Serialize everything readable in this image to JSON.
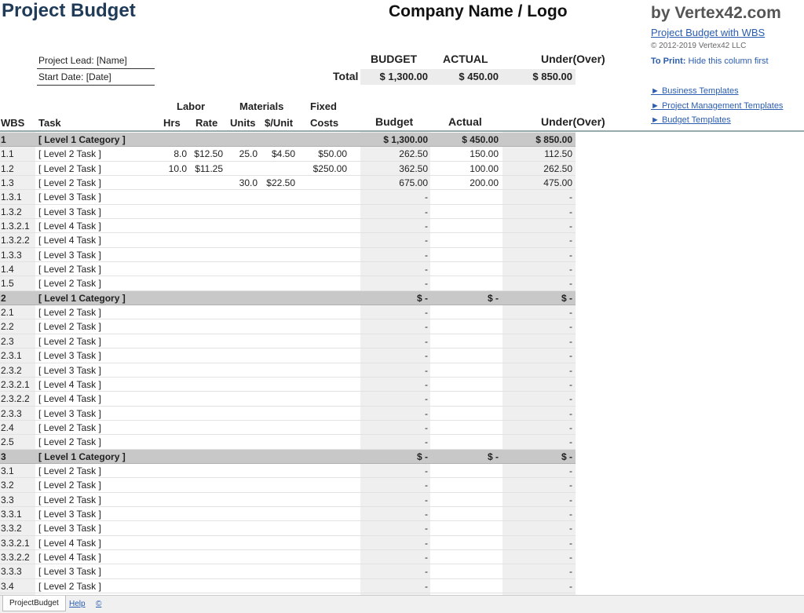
{
  "header": {
    "title": "Project Budget",
    "company": "Company Name / Logo",
    "brand": "by Vertex42.com",
    "brand_link": "Project Budget with WBS",
    "copyright": "© 2012-2019 Vertex42 LLC",
    "to_print_label": "To Print:",
    "to_print_text": "Hide this column first"
  },
  "info": {
    "lead": "Project Lead: [Name]",
    "start": "Start Date: [Date]"
  },
  "summary": {
    "budget_label": "BUDGET",
    "actual_label": "ACTUAL",
    "under_label": "Under(Over)",
    "total_label": "Total",
    "budget": "$ 1,300.00",
    "actual": "$ 450.00",
    "under": "$ 850.00"
  },
  "side_links": [
    "► Business Templates",
    "► Project Management Templates",
    "► Budget Templates"
  ],
  "columns": {
    "labor": "Labor",
    "materials": "Materials",
    "fixed": "Fixed",
    "wbs": "WBS",
    "task": "Task",
    "hrs": "Hrs",
    "rate": "Rate",
    "units": "Units",
    "per_unit": "$/Unit",
    "costs": "Costs",
    "budget": "Budget",
    "actual": "Actual",
    "under": "Under(Over)"
  },
  "rows": [
    {
      "cat": true,
      "wbs": "1",
      "task": "[ Level 1 Category ]",
      "budget": "$ 1,300.00",
      "actual": "$ 450.00",
      "under": "$ 850.00"
    },
    {
      "wbs": "1.1",
      "task": "[ Level 2 Task ]",
      "hrs": "8.0",
      "rate": "$12.50",
      "units": "25.0",
      "per_unit": "$4.50",
      "fixed": "$50.00",
      "budget": "262.50",
      "actual": "150.00",
      "under": "112.50"
    },
    {
      "wbs": "1.2",
      "task": "[ Level 2 Task ]",
      "hrs": "10.0",
      "rate": "$11.25",
      "fixed": "$250.00",
      "budget": "362.50",
      "actual": "100.00",
      "under": "262.50"
    },
    {
      "wbs": "1.3",
      "task": "[ Level 2 Task ]",
      "units": "30.0",
      "per_unit": "$22.50",
      "budget": "675.00",
      "actual": "200.00",
      "under": "475.00"
    },
    {
      "wbs": "1.3.1",
      "task": "[ Level 3 Task ]",
      "budget": "-",
      "under": "-"
    },
    {
      "wbs": "1.3.2",
      "task": "[ Level 3 Task ]",
      "budget": "-",
      "under": "-"
    },
    {
      "wbs": "1.3.2.1",
      "task": "[ Level 4 Task ]",
      "budget": "-",
      "under": "-"
    },
    {
      "wbs": "1.3.2.2",
      "task": "[ Level 4 Task ]",
      "budget": "-",
      "under": "-"
    },
    {
      "wbs": "1.3.3",
      "task": "[ Level 3 Task ]",
      "budget": "-",
      "under": "-"
    },
    {
      "wbs": "1.4",
      "task": "[ Level 2 Task ]",
      "budget": "-",
      "under": "-"
    },
    {
      "wbs": "1.5",
      "task": "[ Level 2 Task ]",
      "budget": "-",
      "under": "-"
    },
    {
      "cat": true,
      "wbs": "2",
      "task": "[ Level 1 Category ]",
      "budget": "$ -",
      "actual": "$ -",
      "under": "$ -"
    },
    {
      "wbs": "2.1",
      "task": "[ Level 2 Task ]",
      "budget": "-",
      "under": "-"
    },
    {
      "wbs": "2.2",
      "task": "[ Level 2 Task ]",
      "budget": "-",
      "under": "-"
    },
    {
      "wbs": "2.3",
      "task": "[ Level 2 Task ]",
      "budget": "-",
      "under": "-"
    },
    {
      "wbs": "2.3.1",
      "task": "[ Level 3 Task ]",
      "budget": "-",
      "under": "-"
    },
    {
      "wbs": "2.3.2",
      "task": "[ Level 3 Task ]",
      "budget": "-",
      "under": "-"
    },
    {
      "wbs": "2.3.2.1",
      "task": "[ Level 4 Task ]",
      "budget": "-",
      "under": "-"
    },
    {
      "wbs": "2.3.2.2",
      "task": "[ Level 4 Task ]",
      "budget": "-",
      "under": "-"
    },
    {
      "wbs": "2.3.3",
      "task": "[ Level 3 Task ]",
      "budget": "-",
      "under": "-"
    },
    {
      "wbs": "2.4",
      "task": "[ Level 2 Task ]",
      "budget": "-",
      "under": "-"
    },
    {
      "wbs": "2.5",
      "task": "[ Level 2 Task ]",
      "budget": "-",
      "under": "-"
    },
    {
      "cat": true,
      "wbs": "3",
      "task": "[ Level 1 Category ]",
      "budget": "$ -",
      "actual": "$ -",
      "under": "$ -"
    },
    {
      "wbs": "3.1",
      "task": "[ Level 2 Task ]",
      "budget": "-",
      "under": "-"
    },
    {
      "wbs": "3.2",
      "task": "[ Level 2 Task ]",
      "budget": "-",
      "under": "-"
    },
    {
      "wbs": "3.3",
      "task": "[ Level 2 Task ]",
      "budget": "-",
      "under": "-"
    },
    {
      "wbs": "3.3.1",
      "task": "[ Level 3 Task ]",
      "budget": "-",
      "under": "-"
    },
    {
      "wbs": "3.3.2",
      "task": "[ Level 3 Task ]",
      "budget": "-",
      "under": "-"
    },
    {
      "wbs": "3.3.2.1",
      "task": "[ Level 4 Task ]",
      "budget": "-",
      "under": "-"
    },
    {
      "wbs": "3.3.2.2",
      "task": "[ Level 4 Task ]",
      "budget": "-",
      "under": "-"
    },
    {
      "wbs": "3.3.3",
      "task": "[ Level 3 Task ]",
      "budget": "-",
      "under": "-"
    },
    {
      "wbs": "3.4",
      "task": "[ Level 2 Task ]",
      "budget": "-",
      "under": "-"
    }
  ],
  "tabs": {
    "sheet": "ProjectBudget",
    "help": "Help",
    "copy": "©"
  }
}
